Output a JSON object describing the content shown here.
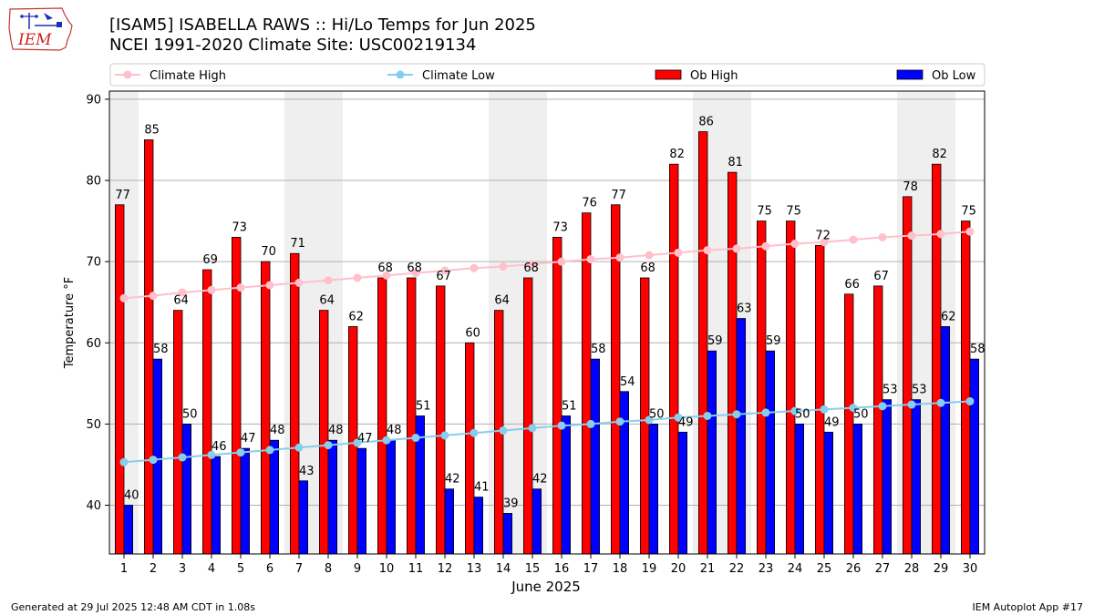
{
  "header": {
    "title_line1": "[ISAM5] ISABELLA RAWS :: Hi/Lo Temps for Jun 2025",
    "title_line2": "NCEI 1991-2020 Climate Site: USC00219134"
  },
  "logo": {
    "text": "IEM",
    "colors": {
      "outline": "#c0392b",
      "text": "#cc2222",
      "symbol": "#1a2fb5"
    }
  },
  "footer": {
    "left": "Generated at 29 Jul 2025 12:48 AM CDT in 1.08s",
    "right": "IEM Autoplot App #17"
  },
  "colors": {
    "ob_high": "#ff0000",
    "ob_low": "#0000ff",
    "climate_high": "#ffc0cb",
    "climate_low": "#87ceeb",
    "weekend_band": "#efefef",
    "grid": "#b0b0b0"
  },
  "chart_data": {
    "type": "bar",
    "xlabel": "June 2025",
    "ylabel": "Temperature °F",
    "ylim": [
      34,
      91
    ],
    "yticks": [
      40,
      50,
      60,
      70,
      80,
      90
    ],
    "grid": "horizontal",
    "legend_placement": "top",
    "categories": [
      "1",
      "2",
      "3",
      "4",
      "5",
      "6",
      "7",
      "8",
      "9",
      "10",
      "11",
      "12",
      "13",
      "14",
      "15",
      "16",
      "17",
      "18",
      "19",
      "20",
      "21",
      "22",
      "23",
      "24",
      "25",
      "26",
      "27",
      "28",
      "29",
      "30"
    ],
    "shaded_days": [
      1,
      7,
      8,
      14,
      15,
      21,
      22,
      28,
      29
    ],
    "series": [
      {
        "name": "Climate High",
        "kind": "line",
        "values": [
          65.5,
          65.8,
          66.2,
          66.5,
          66.8,
          67.1,
          67.4,
          67.7,
          68.0,
          68.3,
          68.6,
          68.9,
          69.2,
          69.4,
          69.7,
          70.0,
          70.3,
          70.5,
          70.8,
          71.1,
          71.4,
          71.6,
          71.9,
          72.2,
          72.4,
          72.7,
          73.0,
          73.2,
          73.4,
          73.7
        ]
      },
      {
        "name": "Climate Low",
        "kind": "line",
        "values": [
          45.3,
          45.6,
          45.9,
          46.2,
          46.5,
          46.8,
          47.1,
          47.4,
          47.7,
          48.0,
          48.3,
          48.6,
          48.9,
          49.2,
          49.5,
          49.8,
          50.0,
          50.3,
          50.5,
          50.8,
          51.0,
          51.2,
          51.4,
          51.6,
          51.8,
          52.0,
          52.2,
          52.4,
          52.6,
          52.8
        ]
      },
      {
        "name": "Ob High",
        "kind": "bar",
        "values": [
          77,
          85,
          64,
          69,
          73,
          70,
          71,
          64,
          62,
          68,
          68,
          67,
          60,
          64,
          68,
          73,
          76,
          77,
          68,
          82,
          86,
          81,
          75,
          75,
          72,
          66,
          67,
          78,
          82,
          75
        ]
      },
      {
        "name": "Ob Low",
        "kind": "bar",
        "values": [
          40,
          58,
          50,
          46,
          47,
          48,
          43,
          48,
          47,
          48,
          51,
          42,
          41,
          39,
          42,
          51,
          58,
          54,
          50,
          49,
          59,
          63,
          59,
          50,
          49,
          50,
          53,
          53,
          62,
          58
        ]
      }
    ]
  }
}
